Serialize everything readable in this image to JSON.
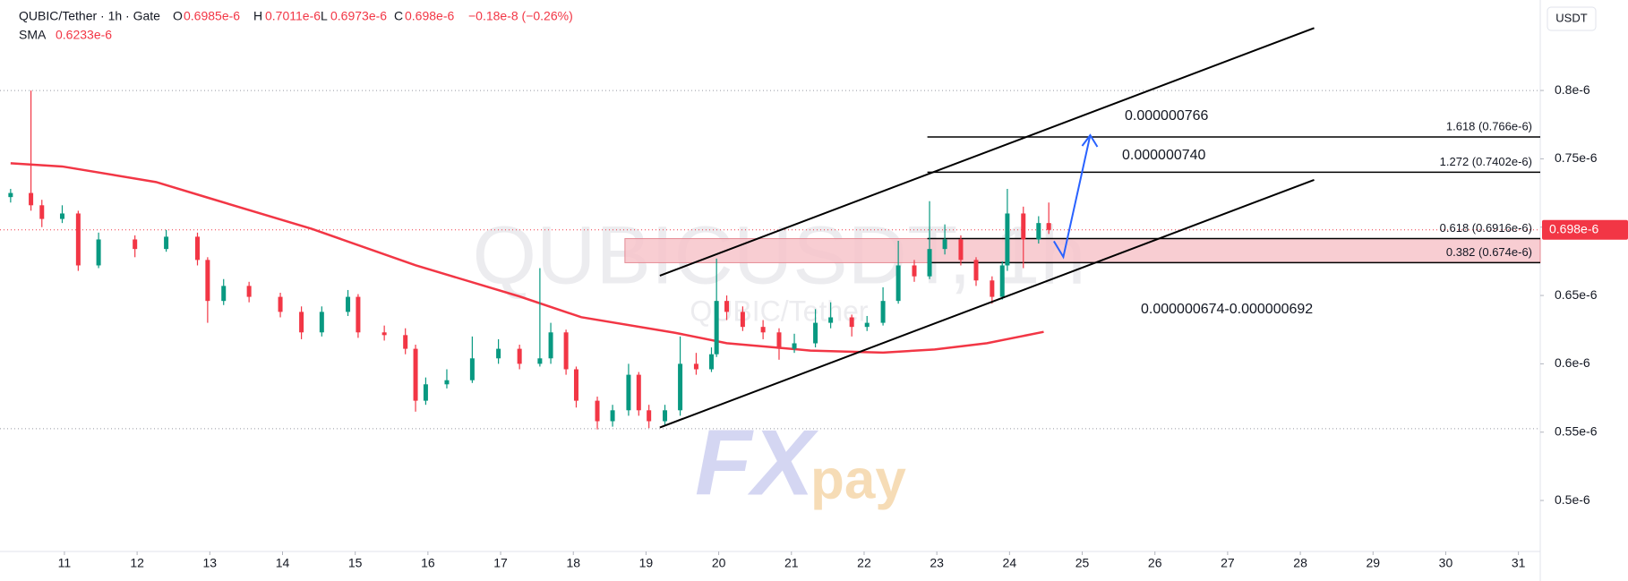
{
  "chart_data": {
    "type": "candlestick",
    "header": {
      "symbol": "QUBIC/Tether · 1h · Gate",
      "o": "O",
      "open": "0.6985e-6",
      "h": "H",
      "high": "0.7011e-6",
      "l": "L",
      "low": "0.6973e-6",
      "c": "C",
      "close": "0.698e-6",
      "change": "−0.18e-8 (−0.26%)"
    },
    "currency": "USDT",
    "watermark": "QUBICUSDT, 1h",
    "watermark_sub": "QUBIC/Tether",
    "logo": [
      "FX",
      "pay"
    ],
    "xlim": [
      10.114,
      31.3
    ],
    "xticks": [
      11,
      12,
      13,
      14,
      15,
      16,
      17,
      18,
      19,
      20,
      21,
      22,
      23,
      24,
      25,
      26,
      27,
      28,
      29,
      30,
      31
    ],
    "ylim": [
      0.4627,
      0.8662
    ],
    "yticks": [
      {
        "value": 0.5,
        "label": "0.5e-6"
      },
      {
        "value": 0.55,
        "label": "0.55e-6"
      },
      {
        "value": 0.6,
        "label": "0.6e-6"
      },
      {
        "value": 0.65,
        "label": "0.65e-6"
      },
      {
        "value": 0.7,
        "label": "0.7e-6"
      },
      {
        "value": 0.75,
        "label": "0.75e-6"
      },
      {
        "value": 0.8,
        "label": "0.8e-6"
      }
    ],
    "up_color": "#089981",
    "down_color": "#f23645",
    "candles": {
      "x": [
        10.26,
        10.54,
        10.69,
        10.97,
        11.19,
        11.47,
        11.97,
        12.4,
        12.83,
        12.97,
        13.19,
        13.54,
        13.97,
        14.26,
        14.54,
        14.9,
        15.04,
        15.4,
        15.69,
        15.83,
        15.97,
        16.26,
        16.61,
        16.97,
        17.26,
        17.54,
        17.69,
        17.9,
        18.04,
        18.33,
        18.54,
        18.76,
        18.9,
        19.04,
        19.26,
        19.47,
        19.69,
        19.9,
        19.97,
        20.11,
        20.33,
        20.61,
        20.83,
        21.04,
        21.33,
        21.54,
        21.83,
        22.04,
        22.26,
        22.47,
        22.69,
        22.9,
        23.11,
        23.33,
        23.54,
        23.76,
        23.9,
        23.97,
        24.19,
        24.4,
        24.54
      ],
      "open": [
        0.722,
        0.725,
        0.716,
        0.706,
        0.71,
        0.672,
        0.691,
        0.684,
        0.693,
        0.676,
        0.646,
        0.657,
        0.649,
        0.638,
        0.623,
        0.638,
        0.649,
        0.623,
        0.621,
        0.611,
        0.573,
        0.585,
        0.588,
        0.604,
        0.611,
        0.6,
        0.604,
        0.623,
        0.596,
        0.573,
        0.558,
        0.566,
        0.592,
        0.566,
        0.558,
        0.566,
        0.6,
        0.596,
        0.607,
        0.646,
        0.638,
        0.627,
        0.623,
        0.611,
        0.615,
        0.63,
        0.634,
        0.627,
        0.63,
        0.646,
        0.672,
        0.664,
        0.684,
        0.691,
        0.676,
        0.661,
        0.649,
        0.672,
        0.71,
        0.691,
        0.703
      ],
      "high": [
        0.728,
        0.8,
        0.72,
        0.716,
        0.712,
        0.696,
        0.694,
        0.698,
        0.696,
        0.678,
        0.662,
        0.66,
        0.652,
        0.642,
        0.642,
        0.654,
        0.651,
        0.628,
        0.626,
        0.614,
        0.59,
        0.596,
        0.62,
        0.618,
        0.614,
        0.67,
        0.63,
        0.625,
        0.598,
        0.576,
        0.57,
        0.6,
        0.594,
        0.57,
        0.57,
        0.62,
        0.608,
        0.612,
        0.677,
        0.65,
        0.642,
        0.632,
        0.626,
        0.622,
        0.64,
        0.645,
        0.636,
        0.635,
        0.656,
        0.69,
        0.676,
        0.719,
        0.702,
        0.694,
        0.678,
        0.664,
        0.675,
        0.728,
        0.715,
        0.708,
        0.718
      ],
      "low": [
        0.718,
        0.712,
        0.7,
        0.703,
        0.668,
        0.67,
        0.678,
        0.682,
        0.672,
        0.63,
        0.643,
        0.645,
        0.634,
        0.618,
        0.62,
        0.635,
        0.619,
        0.617,
        0.607,
        0.565,
        0.57,
        0.582,
        0.586,
        0.6,
        0.596,
        0.598,
        0.6,
        0.592,
        0.568,
        0.552,
        0.554,
        0.562,
        0.562,
        0.553,
        0.555,
        0.562,
        0.592,
        0.594,
        0.605,
        0.632,
        0.624,
        0.618,
        0.603,
        0.608,
        0.612,
        0.626,
        0.62,
        0.624,
        0.628,
        0.644,
        0.66,
        0.662,
        0.68,
        0.672,
        0.657,
        0.644,
        0.647,
        0.668,
        0.67,
        0.688,
        0.695
      ],
      "close": [
        0.725,
        0.716,
        0.706,
        0.71,
        0.672,
        0.691,
        0.684,
        0.693,
        0.676,
        0.646,
        0.657,
        0.649,
        0.638,
        0.623,
        0.638,
        0.649,
        0.623,
        0.621,
        0.611,
        0.573,
        0.585,
        0.588,
        0.604,
        0.611,
        0.6,
        0.604,
        0.623,
        0.596,
        0.573,
        0.558,
        0.566,
        0.592,
        0.566,
        0.558,
        0.566,
        0.6,
        0.596,
        0.607,
        0.646,
        0.638,
        0.627,
        0.623,
        0.611,
        0.615,
        0.63,
        0.634,
        0.627,
        0.63,
        0.646,
        0.672,
        0.664,
        0.684,
        0.691,
        0.676,
        0.661,
        0.649,
        0.672,
        0.71,
        0.691,
        0.703,
        0.698
      ]
    },
    "sma": {
      "name": "SMA",
      "value_label": "0.6233e-6",
      "color": "#f23645",
      "x": [
        10.26,
        10.97,
        12.26,
        12.97,
        14.4,
        15.83,
        17.26,
        18.11,
        19.4,
        20.11,
        21.26,
        22.26,
        22.97,
        23.69,
        24.47
      ],
      "values": [
        0.7467,
        0.7444,
        0.733,
        0.7216,
        0.6988,
        0.6721,
        0.6493,
        0.6341,
        0.6227,
        0.6151,
        0.6097,
        0.6082,
        0.6105,
        0.6151,
        0.6234
      ]
    },
    "last_price": {
      "value": 0.698,
      "label": "0.698e-6"
    },
    "price_lines": [
      0.8,
      0.5525
    ],
    "channel": [
      {
        "x": [
          19.19,
          28.19
        ],
        "y": [
          0.6645,
          0.8457
        ]
      },
      {
        "x": [
          19.19,
          28.19
        ],
        "y": [
          0.5534,
          0.7346
        ]
      }
    ],
    "fib_levels": [
      {
        "label": "1.618 (0.766e-6)",
        "value": 0.766
      },
      {
        "label": "1.272 (0.7402e-6)",
        "value": 0.7402
      },
      {
        "label": "0.618 (0.6916e-6)",
        "value": 0.6916
      },
      {
        "label": "0.382 (0.674e-6)",
        "value": 0.674
      }
    ],
    "fib_start": 22.87,
    "zone": {
      "x_start": 18.71,
      "from": 0.674,
      "to": 0.6916,
      "color": "#f7c4ca"
    },
    "arrow": {
      "x": [
        24.61,
        24.74,
        25.11
      ],
      "y": [
        0.6897,
        0.6782,
        0.7673
      ],
      "color": "#2962ff"
    },
    "annotations": [
      "0.000000766",
      "0.000000740",
      "0.000000674-0.000000692"
    ]
  }
}
